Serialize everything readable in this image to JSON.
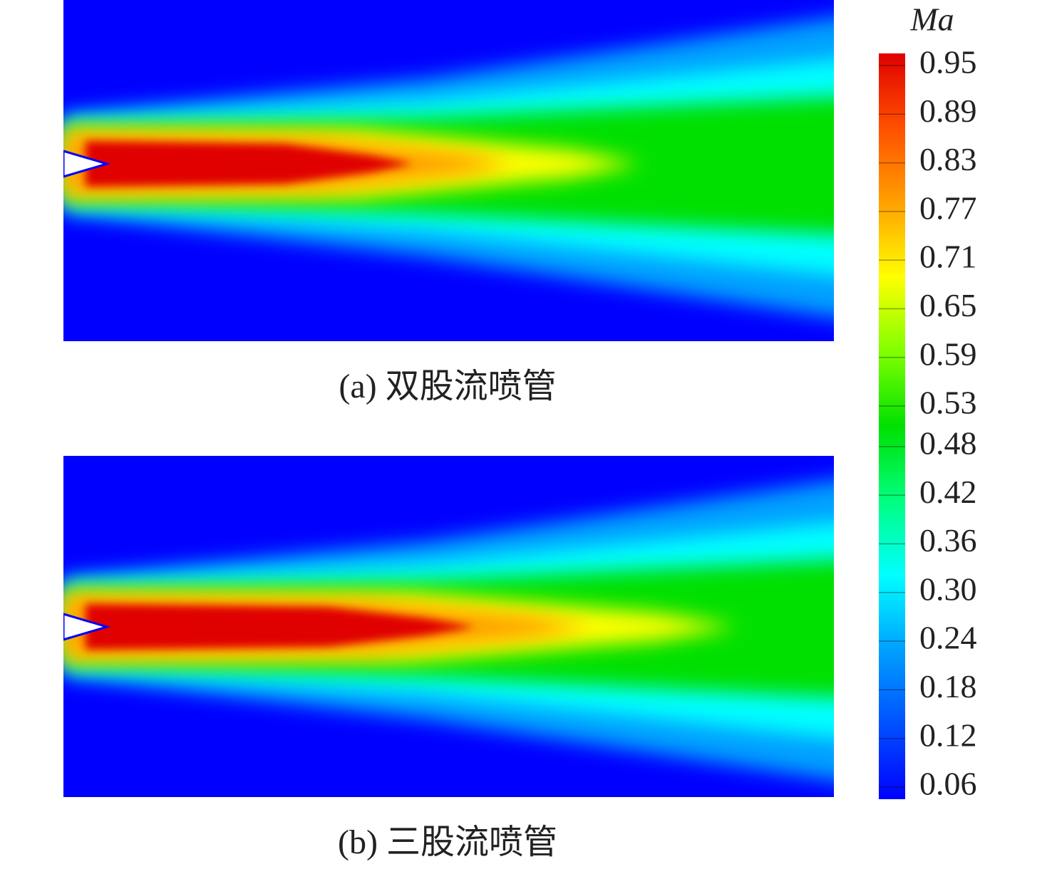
{
  "chart_data": {
    "type": "contour",
    "title": "Ma",
    "panels": [
      {
        "caption": "(a) 双股流喷管"
      },
      {
        "caption": "(b) 三股流喷管"
      }
    ],
    "clim": [
      0.06,
      0.95
    ],
    "cticks": [
      0.06,
      0.12,
      0.18,
      0.24,
      {
        "value": 0.3,
        "label": "0.30"
      },
      0.36,
      0.42,
      0.48,
      0.53,
      0.59,
      0.65,
      0.71,
      0.77,
      0.83,
      0.89,
      0.95
    ],
    "colormap": [
      "#0000ff",
      "#0050ff",
      "#00a0ff",
      "#00ffff",
      "#00ff80",
      "#00e000",
      "#80ff00",
      "#ffff00",
      "#ffa000",
      "#ff5000",
      "#e00000"
    ]
  }
}
